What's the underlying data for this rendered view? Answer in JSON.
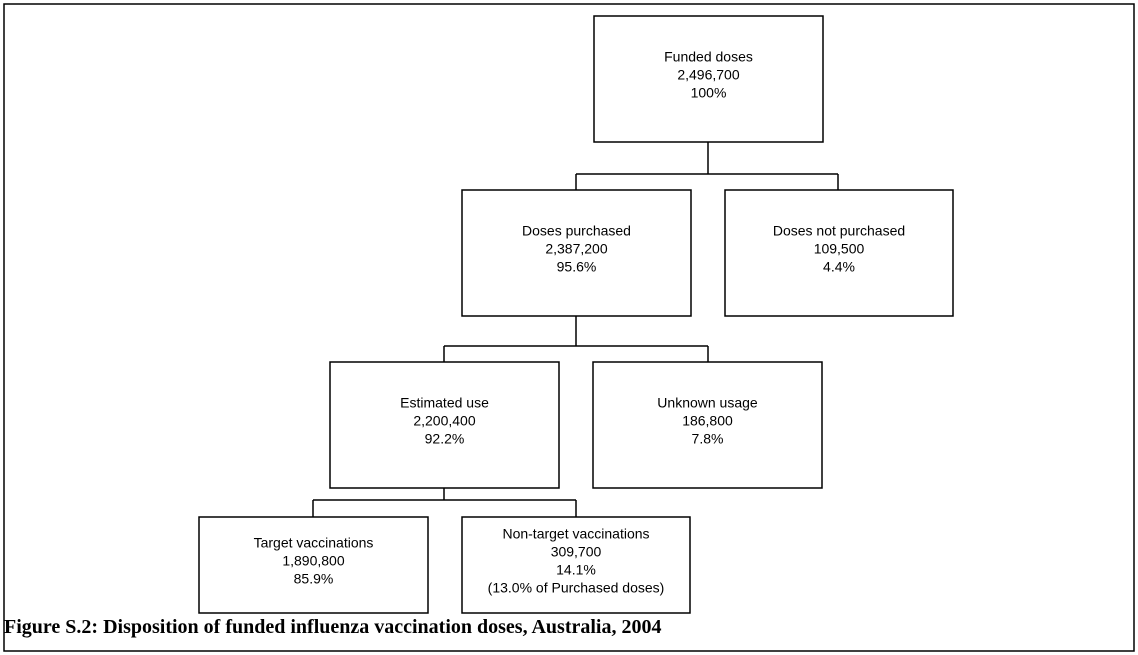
{
  "nodes": [
    {
      "label": "Funded doses",
      "count": "2,496,700",
      "share": "100%"
    },
    {
      "label": "Doses purchased",
      "count": "2,387,200",
      "share": "95.6%"
    },
    {
      "label": "Doses not purchased",
      "count": "109,500",
      "share": "4.4%"
    },
    {
      "label": "Estimated use",
      "count": "2,200,400",
      "share": "92.2%"
    },
    {
      "label": "Unknown usage",
      "count": "186,800",
      "share": "7.8%"
    },
    {
      "label": "Target vaccinations",
      "count": "1,890,800",
      "share": "85.9%"
    },
    {
      "label": "Non-target vaccinations",
      "count": "309,700",
      "share": "14.1%",
      "note": "(13.0% of Purchased doses)"
    }
  ],
  "caption": "Figure S.2: Disposition of funded influenza vaccination doses, Australia, 2004"
}
